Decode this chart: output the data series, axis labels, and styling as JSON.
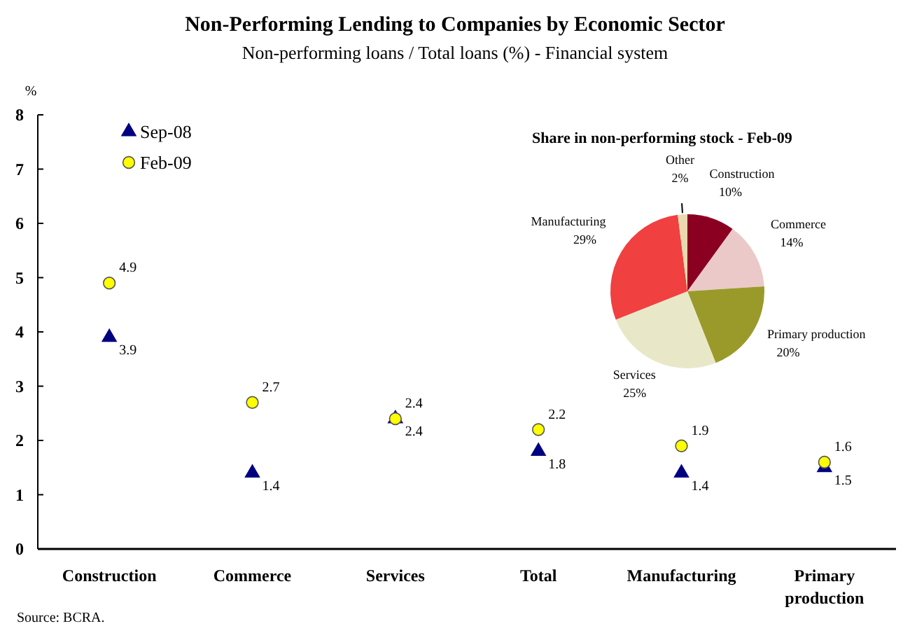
{
  "chart_data": [
    {
      "type": "scatter",
      "title": "Non-Performing Lending to Companies by Economic Sector",
      "subtitle": "Non-performing loans / Total loans (%) - Financial system",
      "ylabel": "%",
      "categories": [
        "Construction",
        "Commerce",
        "Services",
        "Total",
        "Manufacturing",
        "Primary production"
      ],
      "ylim": [
        0,
        8
      ],
      "yticks": [
        0,
        1,
        2,
        3,
        4,
        5,
        6,
        7,
        8
      ],
      "grid": false,
      "legend": "top left",
      "data_labels": true,
      "annotations": [
        "Source: BCRA."
      ],
      "series": [
        {
          "name": "Sep-08",
          "color": "#000080",
          "marker": "triangle",
          "values": [
            3.9,
            1.4,
            2.4,
            1.8,
            1.4,
            1.5
          ]
        },
        {
          "name": "Feb-09",
          "color": "#ffff00",
          "marker": "circle",
          "values": [
            4.9,
            2.7,
            2.4,
            2.2,
            1.9,
            1.6
          ]
        }
      ]
    },
    {
      "type": "pie",
      "title": "Share in non-performing stock - Feb-09",
      "categories": [
        "Construction",
        "Commerce",
        "Primary production",
        "Services",
        "Manufacturing",
        "Other"
      ],
      "values": [
        10,
        14,
        20,
        25,
        29,
        2
      ],
      "value_labels": [
        "10%",
        "14%",
        "20%",
        "25%",
        "29%",
        "2%"
      ],
      "colors": [
        "#8b0020",
        "#ebc9c9",
        "#9a9a2a",
        "#e8e8c8",
        "#f04040",
        "#ead9b0"
      ]
    }
  ]
}
